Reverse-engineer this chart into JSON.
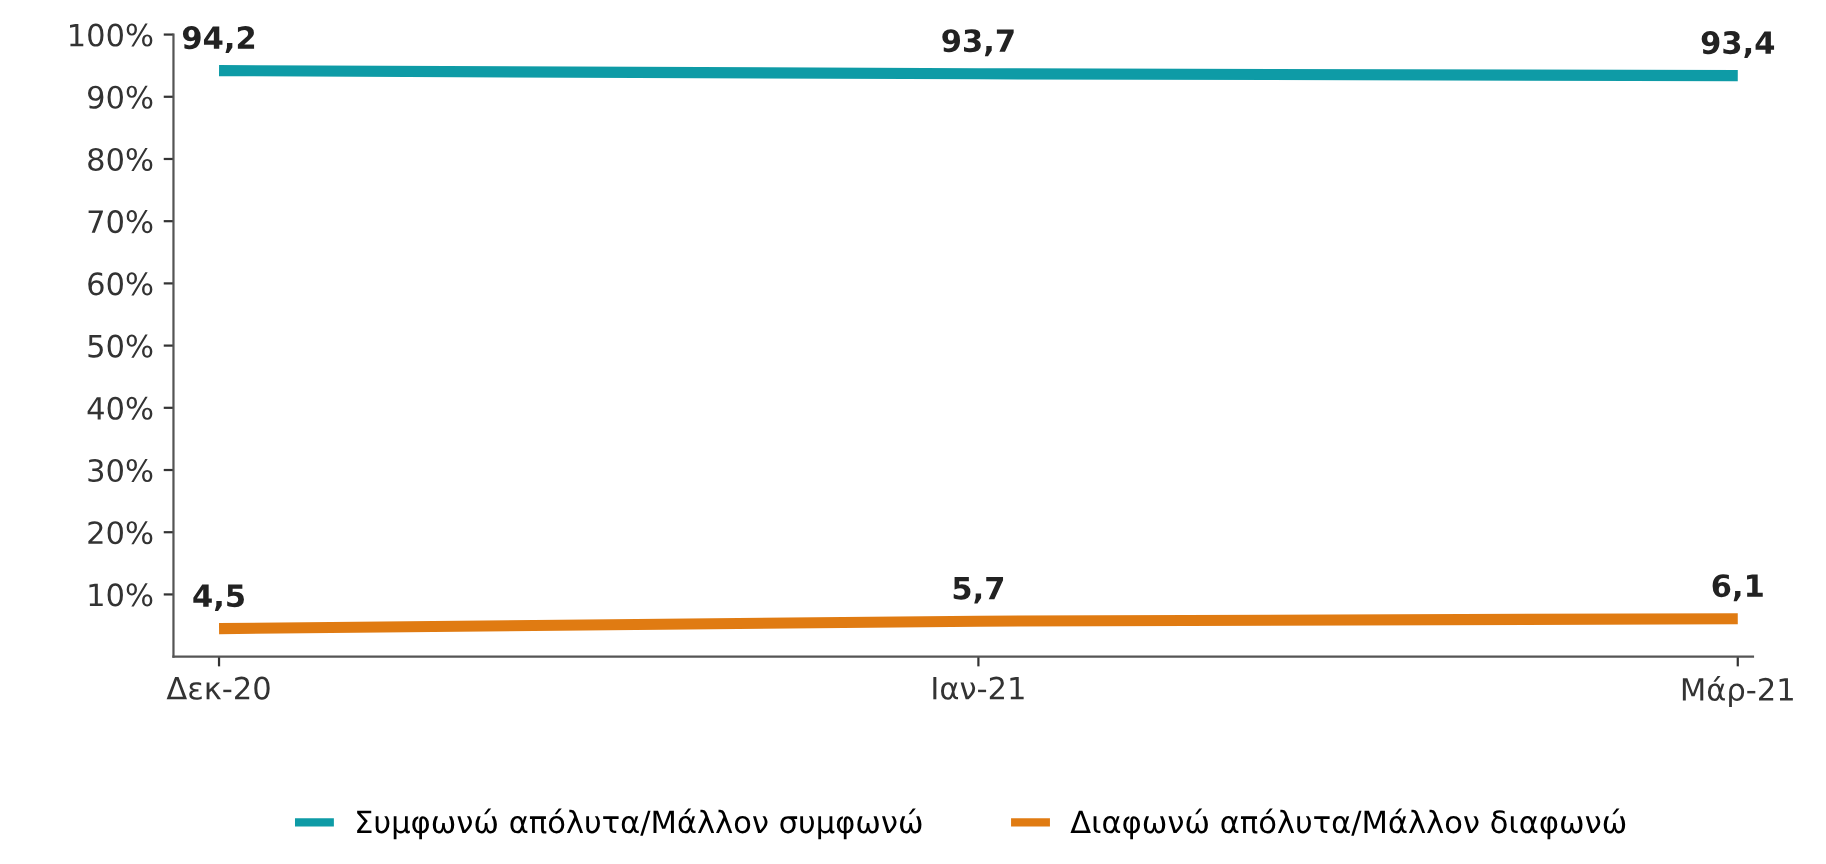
{
  "chart_data": {
    "type": "line",
    "categories": [
      "Δεκ-20",
      "Ιαν-21",
      "Μάρ-21"
    ],
    "series": [
      {
        "name": "Συμφωνώ απόλυτα/Μάλλον συμφωνώ",
        "color": "#0e9ba6",
        "values": [
          94.2,
          93.7,
          93.4
        ],
        "value_labels": [
          "94,2",
          "93,7",
          "93,4"
        ]
      },
      {
        "name": "Διαφωνώ απόλυτα/Μάλλον διαφωνώ",
        "color": "#e07b12",
        "values": [
          4.5,
          5.7,
          6.1
        ],
        "value_labels": [
          "4,5",
          "5,7",
          "6,1"
        ]
      }
    ],
    "ylim": [
      0,
      100
    ],
    "yticks": [
      {
        "value": 10,
        "label": "10%"
      },
      {
        "value": 20,
        "label": "20%"
      },
      {
        "value": 30,
        "label": "30%"
      },
      {
        "value": 40,
        "label": "40%"
      },
      {
        "value": 50,
        "label": "50%"
      },
      {
        "value": 60,
        "label": "60%"
      },
      {
        "value": 70,
        "label": "70%"
      },
      {
        "value": 80,
        "label": "80%"
      },
      {
        "value": 90,
        "label": "90%"
      },
      {
        "value": 100,
        "label": "100%"
      }
    ],
    "grid": false,
    "legend": "bottom",
    "marker": "none",
    "line_style": "solid"
  }
}
